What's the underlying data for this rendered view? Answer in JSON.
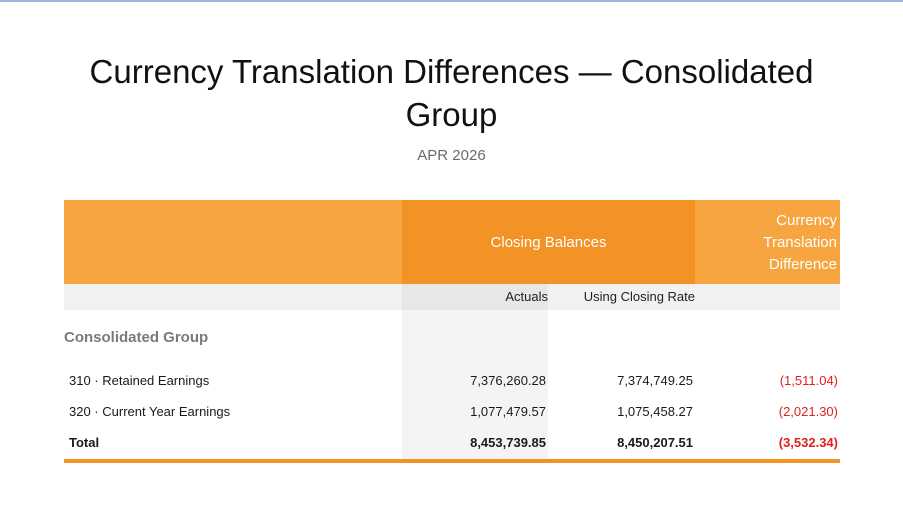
{
  "report": {
    "title": "Currency Translation Differences — Consolidated Group",
    "period": "APR 2026"
  },
  "table": {
    "header_closing_balances": "Closing Balances",
    "header_ctd_line1": "Currency",
    "header_ctd_line2": "Translation",
    "header_ctd_line3": "Difference",
    "sub_actuals": "Actuals",
    "sub_closing_rate": "Using Closing Rate",
    "group_label": "Consolidated Group",
    "rows": [
      {
        "label": "310 · Retained Earnings",
        "actuals": "7,376,260.28",
        "closing_rate": "7,374,749.25",
        "difference": "(1,511.04)"
      },
      {
        "label": "320 · Current Year Earnings",
        "actuals": "1,077,479.57",
        "closing_rate": "1,075,458.27",
        "difference": "(2,021.30)"
      }
    ],
    "total": {
      "label": "Total",
      "actuals": "8,453,739.85",
      "closing_rate": "8,450,207.51",
      "difference": "(3,532.34)"
    }
  },
  "colors": {
    "accent_orange": "#f39325",
    "light_orange": "#f6a540",
    "negative_red": "#e02020"
  }
}
